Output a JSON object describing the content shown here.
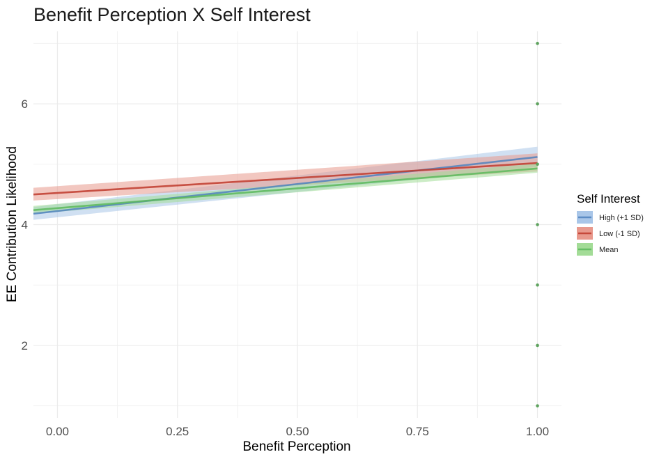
{
  "chart_data": {
    "type": "line",
    "title": "Benefit Perception X Self Interest",
    "xlabel": "Benefit Perception",
    "ylabel": "EE Contribution Likelihood",
    "xlim": [
      -0.05,
      1.05
    ],
    "ylim": [
      0.8,
      7.2
    ],
    "x_ticks": [
      0.0,
      0.25,
      0.5,
      0.75,
      1.0
    ],
    "x_tick_labels": [
      "0.00",
      "0.25",
      "0.50",
      "0.75",
      "1.00"
    ],
    "y_ticks": [
      2,
      4,
      6
    ],
    "y_tick_labels": [
      "2",
      "4",
      "6"
    ],
    "grid": true,
    "legend": {
      "title": "Self Interest",
      "position": "right"
    },
    "series": [
      {
        "name": "High (+1 SD)",
        "color": "#4f81bd",
        "band_color": "#a9c6e8",
        "x": [
          -0.05,
          1.0
        ],
        "y": [
          4.18,
          5.12
        ],
        "lower": [
          4.08,
          4.96
        ],
        "upper": [
          4.29,
          5.29
        ]
      },
      {
        "name": "Low (-1 SD)",
        "color": "#c0392b",
        "band_color": "#e8998d",
        "x": [
          -0.05,
          1.0
        ],
        "y": [
          4.5,
          5.02
        ],
        "lower": [
          4.4,
          4.88
        ],
        "upper": [
          4.61,
          5.18
        ]
      },
      {
        "name": "Mean",
        "color": "#5cb85c",
        "band_color": "#a3dc97",
        "x": [
          -0.05,
          1.0
        ],
        "y": [
          4.24,
          4.93
        ],
        "lower": [
          4.18,
          4.86
        ],
        "upper": [
          4.31,
          5.01
        ]
      }
    ],
    "points": {
      "color": "#5fa35f",
      "x": [
        1.0,
        1.0,
        1.0,
        1.0,
        1.0,
        1.0,
        1.0
      ],
      "y": [
        1,
        2,
        3,
        4,
        5,
        6,
        7
      ]
    }
  }
}
